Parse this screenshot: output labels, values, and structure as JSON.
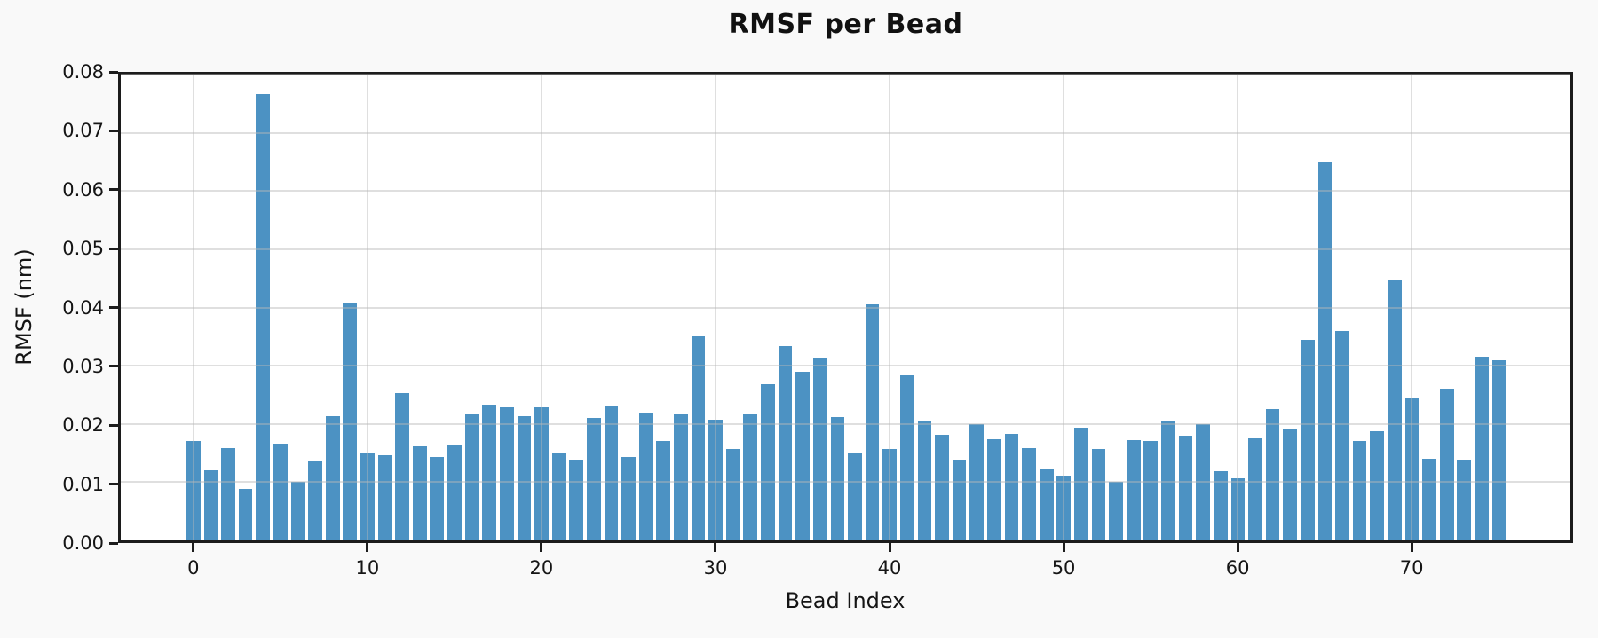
{
  "title": "RMSF per Bead",
  "axes": {
    "xlabel": "Bead Index",
    "ylabel": "RMSF (nm)"
  },
  "colors": {
    "bar": "#4c92c3",
    "figure_background": "#f9f9f9",
    "plot_background": "#ffffff",
    "spine": "#1c1c1c",
    "grid": "rgba(184,184,184,0.45)",
    "text": "#151515"
  },
  "chart_data": {
    "type": "bar",
    "title": "RMSF per Bead",
    "xlabel": "Bead Index",
    "ylabel": "RMSF (nm)",
    "ylim": [
      0,
      0.08
    ],
    "grid": true,
    "legend": null,
    "yticks": [
      {
        "value": 0.0,
        "label": "0.00"
      },
      {
        "value": 0.01,
        "label": "0.01"
      },
      {
        "value": 0.02,
        "label": "0.02"
      },
      {
        "value": 0.03,
        "label": "0.03"
      },
      {
        "value": 0.04,
        "label": "0.04"
      },
      {
        "value": 0.05,
        "label": "0.05"
      },
      {
        "value": 0.06,
        "label": "0.06"
      },
      {
        "value": 0.07,
        "label": "0.07"
      },
      {
        "value": 0.08,
        "label": "0.08"
      }
    ],
    "xticks": [
      {
        "index": 0,
        "label": "0"
      },
      {
        "index": 10,
        "label": "10"
      },
      {
        "index": 20,
        "label": "20"
      },
      {
        "index": 30,
        "label": "30"
      },
      {
        "index": 40,
        "label": "40"
      },
      {
        "index": 50,
        "label": "50"
      },
      {
        "index": 60,
        "label": "60"
      },
      {
        "index": 70,
        "label": "70"
      }
    ],
    "x": [
      0,
      1,
      2,
      3,
      4,
      5,
      6,
      7,
      8,
      9,
      10,
      11,
      12,
      13,
      14,
      15,
      16,
      17,
      18,
      19,
      20,
      21,
      22,
      23,
      24,
      25,
      26,
      27,
      28,
      29,
      30,
      31,
      32,
      33,
      34,
      35,
      36,
      37,
      38,
      39,
      40,
      41,
      42,
      43,
      44,
      45,
      46,
      47,
      48,
      49,
      50,
      51,
      52,
      53,
      54,
      55,
      56,
      57,
      58,
      59,
      60,
      61,
      62,
      63,
      64,
      65,
      66,
      67,
      68,
      69,
      70,
      71,
      72,
      73,
      74,
      75
    ],
    "values": [
      0.017,
      0.012,
      0.0158,
      0.0089,
      0.0766,
      0.0166,
      0.01,
      0.0135,
      0.0213,
      0.0407,
      0.0151,
      0.0147,
      0.0253,
      0.0161,
      0.0144,
      0.0164,
      0.0216,
      0.0233,
      0.0229,
      0.0213,
      0.0228,
      0.015,
      0.0138,
      0.0211,
      0.0232,
      0.0143,
      0.022,
      0.017,
      0.0218,
      0.035,
      0.0208,
      0.0157,
      0.0218,
      0.0268,
      0.0334,
      0.029,
      0.0313,
      0.0212,
      0.015,
      0.0406,
      0.0157,
      0.0284,
      0.0206,
      0.0182,
      0.0139,
      0.0199,
      0.0174,
      0.0183,
      0.0158,
      0.0123,
      0.0111,
      0.0193,
      0.0157,
      0.01,
      0.0172,
      0.0171,
      0.0206,
      0.018,
      0.0199,
      0.0119,
      0.0106,
      0.0176,
      0.0226,
      0.0191,
      0.0345,
      0.0649,
      0.0359,
      0.017,
      0.0187,
      0.0448,
      0.0245,
      0.014,
      0.0261,
      0.0138,
      0.0315,
      0.0309
    ]
  }
}
